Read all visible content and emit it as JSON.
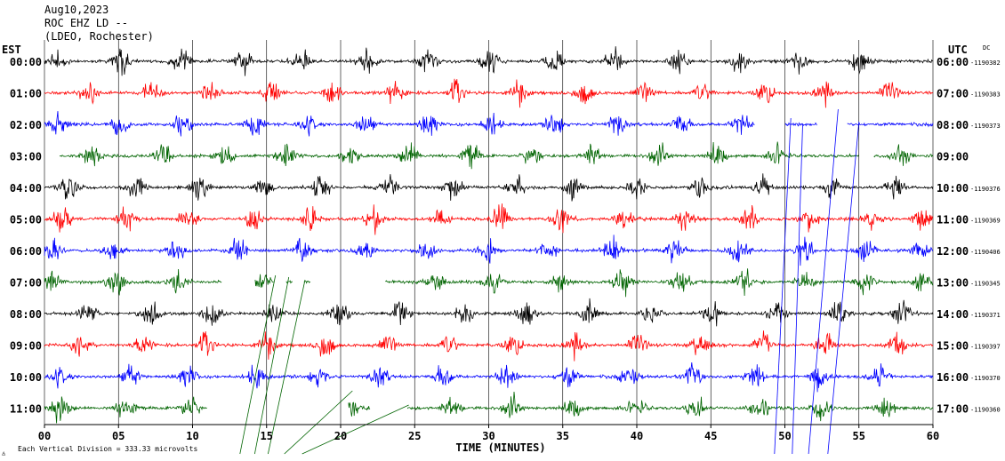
{
  "header": {
    "date": "Aug10,2023",
    "station": "ROC EHZ LD --",
    "network": "(LDEO, Rochester)"
  },
  "left_axis_label": "EST",
  "right_axis_label": "UTC",
  "dc_label": "DC",
  "x_axis_label": "TIME (MINUTES)",
  "footer_text": "Each Vertical Division =  333.33 microvolts",
  "colors": {
    "black": "#000000",
    "red": "#ff0000",
    "blue": "#0000ff",
    "green": "#006400"
  },
  "chart_data": {
    "type": "line",
    "title": "ROC EHZ LD --",
    "xlabel": "TIME (MINUTES)",
    "xlim": [
      0,
      60
    ],
    "x_ticks": [
      "00",
      "05",
      "10",
      "15",
      "20",
      "25",
      "30",
      "35",
      "40",
      "45",
      "50",
      "55",
      "60"
    ],
    "grid": "vertical lines every 5 minutes",
    "traces": [
      {
        "est": "00:00",
        "utc": "06:00",
        "dc": "-1190382",
        "color": "black",
        "burst_minutes": [
          0.8,
          5.2,
          9.2,
          13.5,
          17.3,
          21.8,
          25.9,
          30,
          34.4,
          38.4,
          42.8,
          46.9,
          51,
          55
        ],
        "gaps": []
      },
      {
        "est": "01:00",
        "utc": "07:00",
        "dc": "-1190383",
        "color": "red",
        "burst_minutes": [
          3,
          7.2,
          11.2,
          15.3,
          19.5,
          23.7,
          27.8,
          32,
          36.5,
          40.5,
          44.5,
          48.6,
          52.6,
          57
        ],
        "gaps": []
      },
      {
        "est": "02:00",
        "utc": "08:00",
        "dc": "-1190373",
        "color": "blue",
        "burst_minutes": [
          1,
          5,
          9.3,
          14.2,
          17.8,
          21.7,
          26,
          30.2,
          34.5,
          38.7,
          43,
          47,
          53.2
        ],
        "gaps": [
          [
            48,
            50
          ],
          [
            52.2,
            54.2
          ]
        ]
      },
      {
        "est": "03:00",
        "utc": "09:00",
        "dc": "",
        "color": "green",
        "burst_minutes": [
          3.2,
          8,
          12.2,
          16.3,
          20.6,
          24.7,
          28.8,
          33,
          37,
          41.4,
          45.5,
          49.6,
          57.8
        ],
        "gaps": [
          [
            0,
            1
          ],
          [
            55,
            56
          ]
        ]
      },
      {
        "est": "04:00",
        "utc": "10:00",
        "dc": "-1190376",
        "color": "black",
        "burst_minutes": [
          1.7,
          6.2,
          10.5,
          14.8,
          18.7,
          23.3,
          27.6,
          31.8,
          35.8,
          40,
          44.3,
          48.5,
          53.2,
          57.4
        ],
        "gaps": []
      },
      {
        "est": "05:00",
        "utc": "11:00",
        "dc": "-1190369",
        "color": "red",
        "burst_minutes": [
          1.2,
          5.5,
          9.7,
          14.1,
          18,
          22.2,
          26.7,
          30.8,
          34.9,
          39.2,
          43.3,
          47.6,
          51.6,
          55.9,
          59.3
        ],
        "gaps": []
      },
      {
        "est": "06:00",
        "utc": "12:00",
        "dc": "-1190406",
        "color": "blue",
        "burst_minutes": [
          0.5,
          4.6,
          8.9,
          13.1,
          17.4,
          21.6,
          25.8,
          29.9,
          34,
          38.3,
          42.6,
          46.9,
          51.3,
          55.4,
          59.2
        ],
        "gaps": []
      },
      {
        "est": "07:00",
        "utc": "13:00",
        "dc": "-1190345",
        "color": "green",
        "burst_minutes": [
          0.5,
          4.8,
          9,
          14.7,
          26.4,
          30.3,
          34.8,
          39,
          43,
          47.2,
          51.4,
          55.4,
          59.3
        ],
        "gaps": [
          [
            12,
            14.2
          ],
          [
            15.5,
            16.3
          ],
          [
            16.8,
            17.5
          ],
          [
            18,
            23
          ]
        ]
      },
      {
        "est": "08:00",
        "utc": "14:00",
        "dc": "-1190371",
        "color": "black",
        "burst_minutes": [
          3,
          7.2,
          11.3,
          15.5,
          19.9,
          24,
          28.3,
          32.5,
          36.7,
          41,
          45.1,
          49.5,
          53.6,
          57.9
        ],
        "gaps": []
      },
      {
        "est": "09:00",
        "utc": "15:00",
        "dc": "-1190397",
        "color": "red",
        "burst_minutes": [
          2.4,
          6.7,
          10.9,
          15,
          19,
          23.2,
          27.4,
          31.6,
          35.8,
          40,
          44.3,
          48.5,
          52.7,
          57.6
        ],
        "gaps": []
      },
      {
        "est": "10:00",
        "utc": "16:00",
        "dc": "-1190370",
        "color": "blue",
        "burst_minutes": [
          1,
          5.8,
          9.7,
          14.3,
          18.5,
          22.6,
          26.9,
          31.2,
          35.3,
          39.5,
          43.8,
          47.9,
          52.3,
          56.4
        ],
        "gaps": []
      },
      {
        "est": "11:00",
        "utc": "17:00",
        "dc": "-1190360",
        "color": "green",
        "burst_minutes": [
          1,
          5.5,
          9.8,
          20.8,
          27.5,
          31.5,
          35.8,
          40,
          44,
          48.3,
          52.5,
          56.8
        ],
        "gaps": [
          [
            11,
            20.5
          ],
          [
            22,
            24.5
          ]
        ]
      }
    ]
  }
}
